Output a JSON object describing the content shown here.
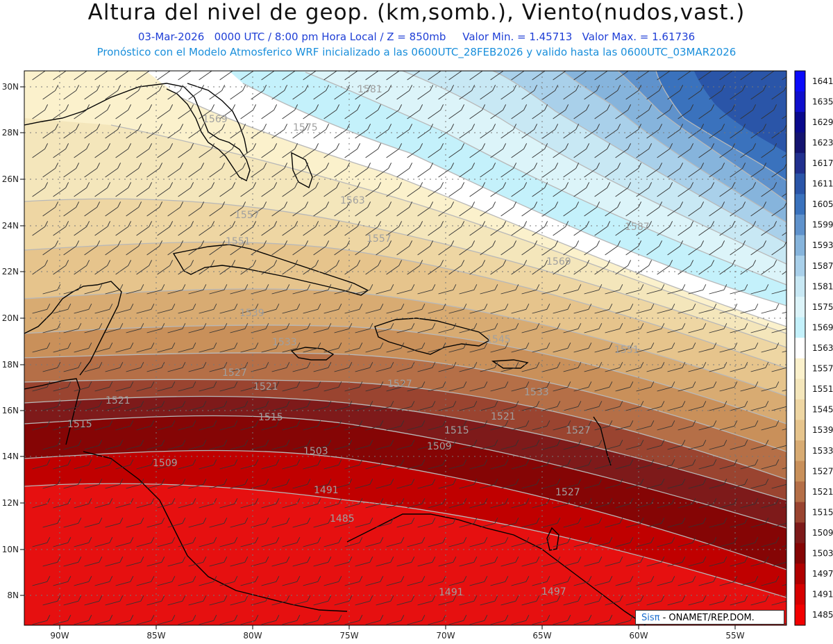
{
  "header": {
    "title": "Altura del nivel de geop. (km,somb.), Viento(nudos,vast.)",
    "date": "03-Mar-2026",
    "time_info": "0000 UTC / 8:00 pm Hora Local / Z = 850mb",
    "min_value": "Valor Min. = 1.45713",
    "max_value": "Valor Max. = 1.61736",
    "model_info": "Pronóstico con el Modelo Atmosferico WRF inicializado a las 0600UTC_28FEB2026 y valido hasta las  0600UTC_03MAR2026"
  },
  "axes": {
    "lat_labels": [
      "30N",
      "28N",
      "26N",
      "24N",
      "22N",
      "20N",
      "18N",
      "16N",
      "14N",
      "12N",
      "10N",
      "8N"
    ],
    "lon_labels": [
      "90W",
      "85W",
      "80W",
      "75W",
      "70W",
      "65W",
      "60W",
      "55W"
    ]
  },
  "colorbar": {
    "levels": [
      "1641",
      "1635",
      "1629",
      "1623",
      "1617",
      "1611",
      "1605",
      "1599",
      "1593",
      "1587",
      "1581",
      "1575",
      "1569",
      "1563",
      "1557",
      "1551",
      "1545",
      "1539",
      "1533",
      "1527",
      "1521",
      "1515",
      "1509",
      "1503",
      "1497",
      "1491",
      "1485"
    ],
    "colors": [
      "#0b0bfa",
      "#0f0fcc",
      "#0a0a8c",
      "#141470",
      "#21308e",
      "#2a55a8",
      "#3a72bd",
      "#5f92cc",
      "#86b4dc",
      "#a9d0ea",
      "#c8e8f4",
      "#dcf4f9",
      "#c4f1fb",
      "#ffffff",
      "#fbf1cc",
      "#f4e6bb",
      "#eed6a3",
      "#e6c48c",
      "#d8ab72",
      "#c9905a",
      "#b56f47",
      "#9a4430",
      "#7e1a1a",
      "#850505",
      "#b00000",
      "#d60000",
      "#f20000"
    ]
  },
  "contour_labels": [
    "1581",
    "1569",
    "1575",
    "1563",
    "1557",
    "1557",
    "1551",
    "1569",
    "1587",
    "1539",
    "1533",
    "1545",
    "1551",
    "1527",
    "1527",
    "1521",
    "1521",
    "1515",
    "1533",
    "1521",
    "1527",
    "1509",
    "1515",
    "1503",
    "1509",
    "1515",
    "1491",
    "1485",
    "1491",
    "1497"
  ],
  "credit": {
    "sis": "Sis",
    "pi": "π",
    "rest": "- ONAMET/REP.DOM."
  }
}
